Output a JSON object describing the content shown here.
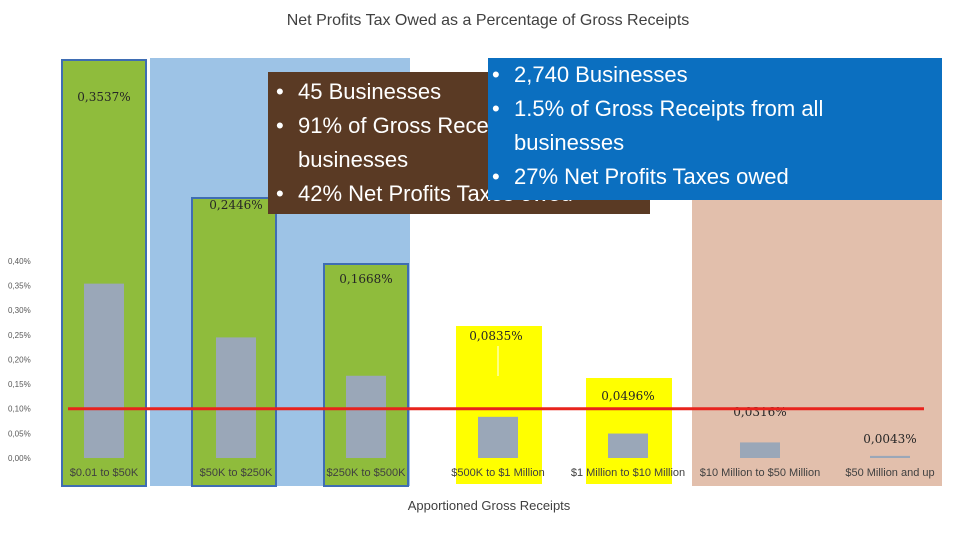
{
  "chart_data": {
    "type": "bar",
    "title": "Net Profits Tax Owed as a Percentage of Gross Receipts",
    "xlabel": "Apportioned Gross Receipts",
    "ylabel": "",
    "ylim": [
      0,
      0.4
    ],
    "yticks": [
      "0,00%",
      "0,05%",
      "0,10%",
      "0,15%",
      "0,20%",
      "0,25%",
      "0,30%",
      "0,35%",
      "0,40%"
    ],
    "categories": [
      "$0.01 to $50K",
      "$50K to $250K",
      "$250K to $500K",
      "$500K to $1 Million",
      "$1 Million to $10 Million",
      "$10 Million to $50 Million",
      "$50 Million and up"
    ],
    "values": [
      0.3537,
      0.2446,
      0.1668,
      0.0835,
      0.0496,
      0.0316,
      0.0043
    ],
    "data_labels": [
      "0,3537%",
      "0,2446%",
      "0,1668%",
      "0,0835%",
      "0,0496%",
      "0,0316%",
      "0,0043%"
    ],
    "reference_line": 0.1,
    "grid": false,
    "colors": {
      "bar": "#9aa7b8",
      "highlight_green": "#8fbc3c",
      "highlight_yellow": "#ffff00",
      "region_blue": "#9dc3e6",
      "region_tan": "#e2bfac",
      "reference_line": "#e8231d"
    }
  },
  "callouts": {
    "small": [
      "45 Businesses",
      "91% of Gross Receipts from all businesses",
      "42% Net Profits Taxes owed"
    ],
    "large": [
      "2,740 Businesses",
      "1.5% of Gross Receipts from all businesses",
      "27% Net Profits Taxes owed"
    ],
    "colors": {
      "small_bg": "#5a3a24",
      "large_bg": "#0b6fc0"
    }
  }
}
